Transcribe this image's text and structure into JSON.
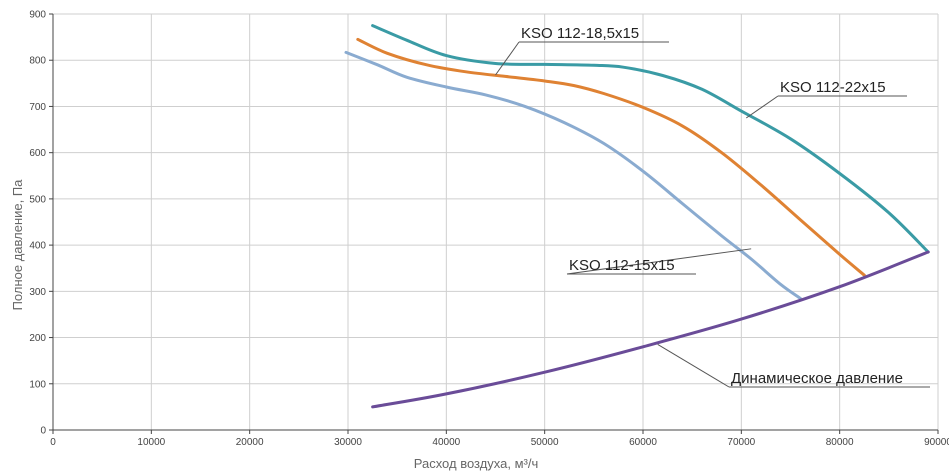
{
  "chart_data": {
    "type": "line",
    "xlabel": "Расход воздуха, м³/ч",
    "ylabel": "Полное давление, Па",
    "xlim": [
      0,
      90000
    ],
    "ylim": [
      0,
      900
    ],
    "x_ticks": [
      "0",
      "10000",
      "20000",
      "30000",
      "40000",
      "50000",
      "60000",
      "70000",
      "80000",
      "90000"
    ],
    "y_ticks": [
      "0",
      "100",
      "200",
      "300",
      "400",
      "500",
      "600",
      "700",
      "800",
      "900"
    ],
    "grid": true,
    "series": [
      {
        "name": "KSO 112-22x15",
        "color": "#3a9ba5",
        "points": [
          [
            32500,
            875
          ],
          [
            36000,
            843
          ],
          [
            40000,
            810
          ],
          [
            45000,
            793
          ],
          [
            50000,
            791
          ],
          [
            55000,
            789
          ],
          [
            58000,
            785
          ],
          [
            62000,
            767
          ],
          [
            66000,
            737
          ],
          [
            70000,
            690
          ],
          [
            75000,
            630
          ],
          [
            80000,
            555
          ],
          [
            85000,
            470
          ],
          [
            89000,
            385
          ]
        ]
      },
      {
        "name": "KSO 112-18,5x15",
        "color": "#df8233",
        "points": [
          [
            31000,
            845
          ],
          [
            34000,
            815
          ],
          [
            38000,
            790
          ],
          [
            42000,
            775
          ],
          [
            46000,
            765
          ],
          [
            50000,
            755
          ],
          [
            53000,
            745
          ],
          [
            56000,
            728
          ],
          [
            60000,
            698
          ],
          [
            64000,
            658
          ],
          [
            68000,
            600
          ],
          [
            72000,
            530
          ],
          [
            76000,
            455
          ],
          [
            80000,
            380
          ],
          [
            82500,
            335
          ]
        ]
      },
      {
        "name": "KSO 112-15x15",
        "color": "#8aabd0",
        "points": [
          [
            29800,
            817
          ],
          [
            33000,
            790
          ],
          [
            36000,
            763
          ],
          [
            40000,
            742
          ],
          [
            44000,
            725
          ],
          [
            48000,
            700
          ],
          [
            52000,
            665
          ],
          [
            56000,
            620
          ],
          [
            60000,
            560
          ],
          [
            64000,
            490
          ],
          [
            68000,
            420
          ],
          [
            71000,
            370
          ],
          [
            74000,
            315
          ],
          [
            76000,
            285
          ]
        ]
      },
      {
        "name": "Динамическое давление",
        "color": "#6a4c98",
        "points": [
          [
            32500,
            50
          ],
          [
            40000,
            78
          ],
          [
            50000,
            125
          ],
          [
            60000,
            180
          ],
          [
            70000,
            240
          ],
          [
            80000,
            310
          ],
          [
            89000,
            385
          ]
        ]
      }
    ],
    "callouts": [
      {
        "text": "KSO 112-22x15",
        "series": 0,
        "point": [
          70500,
          675
        ]
      },
      {
        "text": "KSO 112-18,5x15",
        "series": 1,
        "point": [
          45000,
          768
        ]
      },
      {
        "text": "KSO 112-15x15",
        "series": 2,
        "point": [
          71000,
          392
        ]
      },
      {
        "text": "Динамическое давление",
        "series": 3,
        "point": [
          61500,
          185
        ]
      }
    ]
  }
}
